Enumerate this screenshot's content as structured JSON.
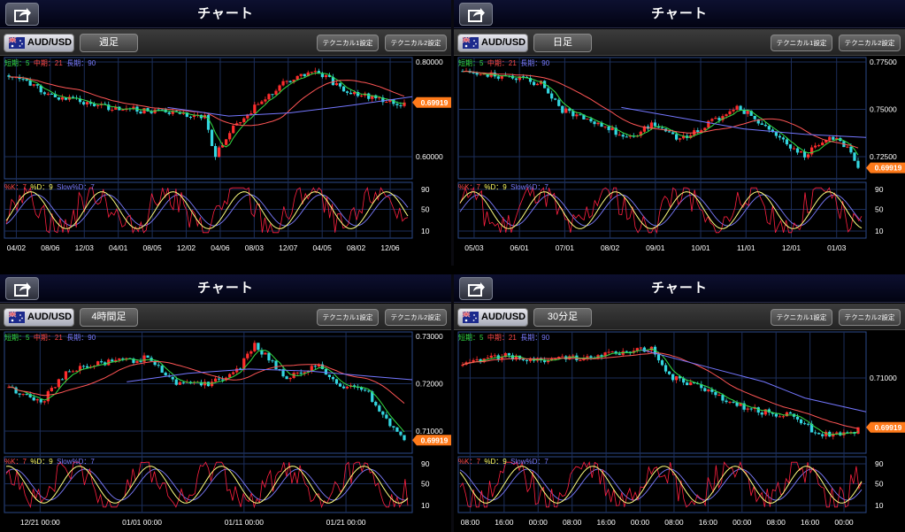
{
  "colors": {
    "up": "#ff2d2d",
    "down": "#33d6e0",
    "ma_short": "#33dd44",
    "ma_mid": "#ff5555",
    "ma_long": "#7477ff",
    "stoch_k": "#ff2040",
    "stoch_d": "#ffff80",
    "stoch_slow": "#7c7cff",
    "price_tag": "#ff7a1a"
  },
  "icons": {
    "share": "share-icon",
    "flag": "au-flag-icon"
  },
  "panels": [
    {
      "title": "チャート",
      "pair": "AUD/USD",
      "period": "週足",
      "tech1": "テクニカル1設定",
      "tech2": "テクニカル2設定",
      "ma_short": "短期：5",
      "ma_mid": "中期：21",
      "ma_long": "長期：90",
      "st_k": "%K：7",
      "st_d": "%D：9",
      "st_slow": "Slow%D：7",
      "price_tag": "0.69919",
      "y_ticks": [
        "0.80000",
        "0.60000"
      ],
      "st_ticks": [
        "90",
        "50",
        "10"
      ],
      "x_ticks": [
        "04/02",
        "08/06",
        "12/03",
        "04/01",
        "08/05",
        "12/02",
        "04/06",
        "08/03",
        "12/07",
        "04/05",
        "08/02",
        "12/06"
      ]
    },
    {
      "title": "チャート",
      "pair": "AUD/USD",
      "period": "日足",
      "tech1": "テクニカル1設定",
      "tech2": "テクニカル2設定",
      "ma_short": "短期：5",
      "ma_mid": "中期：21",
      "ma_long": "長期：90",
      "st_k": "%K：7",
      "st_d": "%D：9",
      "st_slow": "Slow%D：7",
      "price_tag": "0.69919",
      "y_ticks": [
        "0.77500",
        "0.75000",
        "0.72500"
      ],
      "st_ticks": [
        "90",
        "50",
        "10"
      ],
      "x_ticks": [
        "05/03",
        "06/01",
        "07/01",
        "08/02",
        "09/01",
        "10/01",
        "11/01",
        "12/01",
        "01/03"
      ]
    },
    {
      "title": "チャート",
      "pair": "AUD/USD",
      "period": "4時間足",
      "tech1": "テクニカル1設定",
      "tech2": "テクニカル2設定",
      "ma_short": "短期：5",
      "ma_mid": "中期：21",
      "ma_long": "長期：90",
      "st_k": "%K：7",
      "st_d": "%D：9",
      "st_slow": "Slow%D：7",
      "price_tag": "0.69919",
      "y_ticks": [
        "0.73000",
        "0.72000",
        "0.71000"
      ],
      "st_ticks": [
        "90",
        "50",
        "10"
      ],
      "x_ticks": [
        "12/21 00:00",
        "01/01 00:00",
        "01/11 00:00",
        "01/21 00:00"
      ]
    },
    {
      "title": "チャート",
      "pair": "AUD/USD",
      "period": "30分足",
      "tech1": "テクニカル1設定",
      "tech2": "テクニカル2設定",
      "ma_short": "短期：5",
      "ma_mid": "中期：21",
      "ma_long": "長期：90",
      "st_k": "%K：7",
      "st_d": "%D：9",
      "st_slow": "Slow%D：7",
      "price_tag": "0.69919",
      "y_ticks": [
        "0.71000"
      ],
      "st_ticks": [
        "90",
        "50",
        "10"
      ],
      "x_ticks": [
        "08:00",
        "16:00",
        "00:00",
        "08:00",
        "16:00",
        "00:00",
        "08:00",
        "16:00",
        "00:00",
        "08:00",
        "16:00",
        "00:00"
      ]
    }
  ]
}
